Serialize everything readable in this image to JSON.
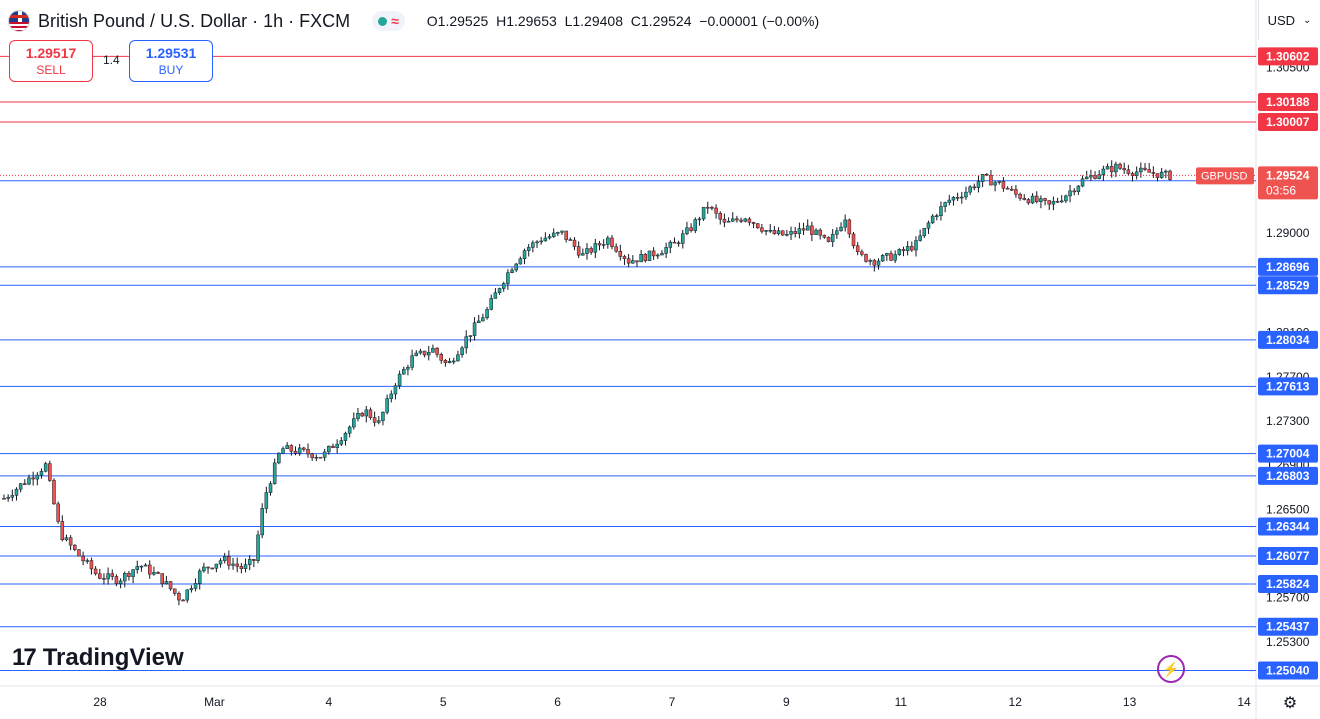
{
  "header": {
    "title": "British Pound / U.S. Dollar · 1h · FXCM",
    "ohlc": {
      "open_label": "O",
      "open": "1.29525",
      "high_label": "H",
      "high": "1.29653",
      "low_label": "L",
      "low": "1.29408",
      "close_label": "C",
      "close": "1.29524",
      "change": "−0.00001 (−0.00%)"
    }
  },
  "trade": {
    "sell_price": "1.29517",
    "sell_label": "SELL",
    "buy_price": "1.29531",
    "buy_label": "BUY",
    "spread": "1.4"
  },
  "currency": {
    "label": "USD"
  },
  "branding": {
    "logo_text": "TradingView",
    "logo_mark": "17"
  },
  "icons": {
    "flag": "gbp-usd-flag-icon",
    "bolt": "lightning-icon",
    "settings": "settings-gear-icon",
    "chevron": "chevron-down-icon"
  },
  "colors": {
    "up": "#26a69a",
    "down": "#ef5350",
    "candle": "#131722",
    "support_line": "#2962ff",
    "resistance_line": "#f23645",
    "support_badge": "#2962ff",
    "resistance_badge": "#f23645"
  },
  "chart_data": {
    "type": "candlestick",
    "symbol_label": "GBPUSD",
    "current_price": "1.29524",
    "countdown": "03:56",
    "x_tick_labels": [
      "28",
      "Mar",
      "4",
      "5",
      "6",
      "7",
      "9",
      "11",
      "12",
      "13",
      "14"
    ],
    "y_tick_labels": [
      "1.30500",
      "1.29000",
      "1.28100",
      "1.27700",
      "1.27300",
      "1.26900",
      "1.26500",
      "1.25700",
      "1.25300"
    ],
    "ylim": [
      1.249,
      1.3075
    ],
    "resistance_levels": [
      "1.30602",
      "1.30188",
      "1.30007"
    ],
    "support_levels": [
      "1.29475",
      "1.28696",
      "1.28529",
      "1.28034",
      "1.27613",
      "1.27004",
      "1.26803",
      "1.26344",
      "1.26077",
      "1.25824",
      "1.25437",
      "1.25040"
    ],
    "close_path": [
      [
        0,
        1.266
      ],
      [
        12,
        1.2678
      ],
      [
        20,
        1.269
      ],
      [
        27,
        1.2628
      ],
      [
        35,
        1.261
      ],
      [
        45,
        1.259
      ],
      [
        55,
        1.2586
      ],
      [
        65,
        1.26
      ],
      [
        75,
        1.2588
      ],
      [
        85,
        1.2568
      ],
      [
        95,
        1.2595
      ],
      [
        105,
        1.2605
      ],
      [
        115,
        1.2596
      ],
      [
        120,
        1.2604
      ],
      [
        125,
        1.266
      ],
      [
        133,
        1.2705
      ],
      [
        143,
        1.2702
      ],
      [
        153,
        1.2698
      ],
      [
        163,
        1.2718
      ],
      [
        173,
        1.274
      ],
      [
        180,
        1.2728
      ],
      [
        188,
        1.2765
      ],
      [
        196,
        1.2787
      ],
      [
        206,
        1.2795
      ],
      [
        213,
        1.278
      ],
      [
        222,
        1.2805
      ],
      [
        232,
        1.283
      ],
      [
        238,
        1.2852
      ],
      [
        244,
        1.287
      ],
      [
        250,
        1.2885
      ],
      [
        258,
        1.2895
      ],
      [
        268,
        1.29
      ],
      [
        278,
        1.288
      ],
      [
        290,
        1.2895
      ],
      [
        300,
        1.2875
      ],
      [
        310,
        1.288
      ],
      [
        322,
        1.289
      ],
      [
        330,
        1.2905
      ],
      [
        338,
        1.2925
      ],
      [
        346,
        1.2908
      ],
      [
        356,
        1.2915
      ],
      [
        368,
        1.29
      ],
      [
        376,
        1.2898
      ],
      [
        386,
        1.2905
      ],
      [
        396,
        1.289
      ],
      [
        404,
        1.2915
      ],
      [
        410,
        1.288
      ],
      [
        418,
        1.2875
      ],
      [
        428,
        1.288
      ],
      [
        438,
        1.289
      ],
      [
        446,
        1.2915
      ],
      [
        454,
        1.293
      ],
      [
        462,
        1.2938
      ],
      [
        470,
        1.295
      ],
      [
        478,
        1.2945
      ],
      [
        486,
        1.2935
      ],
      [
        494,
        1.293
      ],
      [
        502,
        1.2925
      ],
      [
        510,
        1.2935
      ],
      [
        518,
        1.2948
      ],
      [
        526,
        1.2955
      ],
      [
        534,
        1.296
      ],
      [
        542,
        1.2956
      ],
      [
        550,
        1.2955
      ],
      [
        560,
        1.2952
      ]
    ]
  }
}
